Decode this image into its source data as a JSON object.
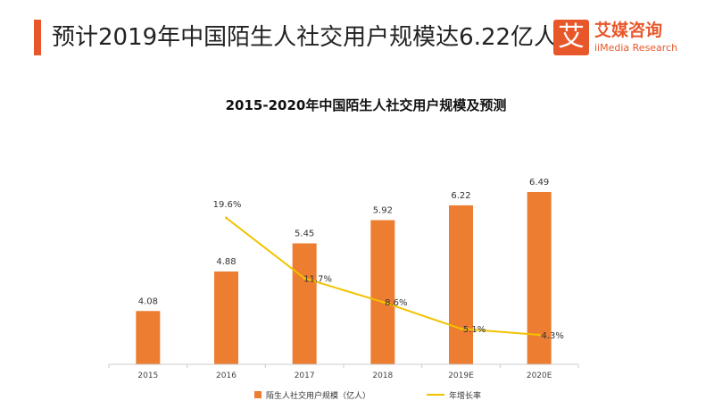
{
  "header": {
    "headline": "预计2019年中国陌生人社交用户规模达6.22亿人"
  },
  "logo": {
    "mark": "艾",
    "name_cn": "艾媒咨询",
    "name_en": "iiMedia Research"
  },
  "colors": {
    "accent": "#e8572a",
    "bar": "#ed7d31",
    "line": "#f2c200"
  },
  "chart_data": {
    "type": "bar",
    "title": "2015-2020年中国陌生人社交用户规模及预测",
    "categories": [
      "2015",
      "2016",
      "2017",
      "2018",
      "2019E",
      "2020E"
    ],
    "series": [
      {
        "name": "陌生人社交用户规模（亿人）",
        "type": "bar",
        "values": [
          4.08,
          4.88,
          5.45,
          5.92,
          6.22,
          6.49
        ],
        "labels": [
          "4.08",
          "4.88",
          "5.45",
          "5.92",
          "6.22",
          "6.49"
        ]
      },
      {
        "name": "年增长率",
        "type": "line",
        "values": [
          null,
          19.6,
          11.7,
          8.6,
          5.1,
          4.3
        ],
        "labels": [
          "",
          "19.6%",
          "11.7%",
          "8.6%",
          "5.1%",
          "4.3%"
        ]
      }
    ],
    "legend_position": "bottom",
    "grid": false
  }
}
